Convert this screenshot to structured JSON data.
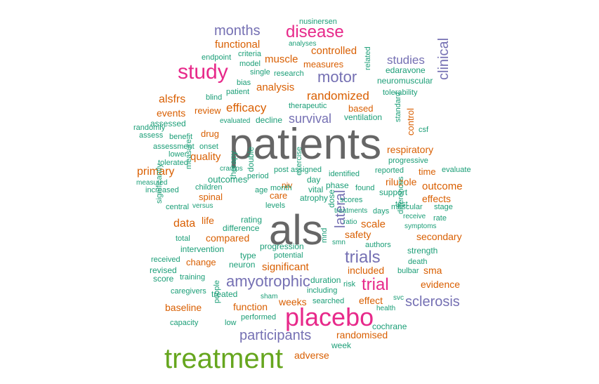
{
  "palette": {
    "gray": "#666666",
    "green": "#66a61e",
    "magenta": "#e7298a",
    "purple": "#7570b3",
    "orange": "#d95f02",
    "teal": "#1b9e77"
  },
  "words": [
    {
      "text": "patients",
      "color": "gray"
    },
    {
      "text": "als",
      "color": "gray"
    },
    {
      "text": "treatment",
      "color": "green"
    },
    {
      "text": "placebo",
      "color": "magenta"
    },
    {
      "text": "study",
      "color": "magenta"
    },
    {
      "text": "disease",
      "color": "magenta"
    },
    {
      "text": "trial",
      "color": "magenta"
    },
    {
      "text": "months",
      "color": "purple"
    },
    {
      "text": "motor",
      "color": "purple"
    },
    {
      "text": "trials",
      "color": "purple"
    },
    {
      "text": "amyotrophic",
      "color": "purple"
    },
    {
      "text": "participants",
      "color": "purple"
    },
    {
      "text": "sclerosis",
      "color": "purple"
    },
    {
      "text": "survival",
      "color": "purple"
    },
    {
      "text": "studies",
      "color": "purple"
    },
    {
      "text": "clinical",
      "color": "purple"
    },
    {
      "text": "lateral",
      "color": "purple"
    },
    {
      "text": "functional",
      "color": "orange"
    },
    {
      "text": "controlled",
      "color": "orange"
    },
    {
      "text": "muscle",
      "color": "orange"
    },
    {
      "text": "measures",
      "color": "orange"
    },
    {
      "text": "analysis",
      "color": "orange"
    },
    {
      "text": "randomized",
      "color": "orange"
    },
    {
      "text": "efficacy",
      "color": "orange"
    },
    {
      "text": "alsfrs",
      "color": "orange"
    },
    {
      "text": "events",
      "color": "orange"
    },
    {
      "text": "review",
      "color": "orange"
    },
    {
      "text": "based",
      "color": "orange"
    },
    {
      "text": "drug",
      "color": "orange"
    },
    {
      "text": "respiratory",
      "color": "orange"
    },
    {
      "text": "quality",
      "color": "orange"
    },
    {
      "text": "primary",
      "color": "orange"
    },
    {
      "text": "outcome",
      "color": "orange"
    },
    {
      "text": "effects",
      "color": "orange"
    },
    {
      "text": "riluzole",
      "color": "orange"
    },
    {
      "text": "data",
      "color": "orange"
    },
    {
      "text": "life",
      "color": "orange"
    },
    {
      "text": "spinal",
      "color": "orange"
    },
    {
      "text": "compared",
      "color": "orange"
    },
    {
      "text": "scale",
      "color": "orange"
    },
    {
      "text": "safety",
      "color": "orange"
    },
    {
      "text": "secondary",
      "color": "orange"
    },
    {
      "text": "significant",
      "color": "orange"
    },
    {
      "text": "included",
      "color": "orange"
    },
    {
      "text": "sma",
      "color": "orange"
    },
    {
      "text": "evidence",
      "color": "orange"
    },
    {
      "text": "change",
      "color": "orange"
    },
    {
      "text": "baseline",
      "color": "orange"
    },
    {
      "text": "function",
      "color": "orange"
    },
    {
      "text": "weeks",
      "color": "orange"
    },
    {
      "text": "effect",
      "color": "orange"
    },
    {
      "text": "randomised",
      "color": "orange"
    },
    {
      "text": "adverse",
      "color": "orange"
    },
    {
      "text": "time",
      "color": "orange"
    },
    {
      "text": "care",
      "color": "orange"
    },
    {
      "text": "niv",
      "color": "orange"
    },
    {
      "text": "control",
      "color": "orange"
    },
    {
      "text": "nusinersen",
      "color": "teal"
    },
    {
      "text": "analyses",
      "color": "teal"
    },
    {
      "text": "endpoint",
      "color": "teal"
    },
    {
      "text": "criteria",
      "color": "teal"
    },
    {
      "text": "model",
      "color": "teal"
    },
    {
      "text": "single",
      "color": "teal"
    },
    {
      "text": "research",
      "color": "teal"
    },
    {
      "text": "bias",
      "color": "teal"
    },
    {
      "text": "patient",
      "color": "teal"
    },
    {
      "text": "blind",
      "color": "teal"
    },
    {
      "text": "therapeutic",
      "color": "teal"
    },
    {
      "text": "evaluated",
      "color": "teal"
    },
    {
      "text": "decline",
      "color": "teal"
    },
    {
      "text": "ventilation",
      "color": "teal"
    },
    {
      "text": "edaravone",
      "color": "teal"
    },
    {
      "text": "neuromuscular",
      "color": "teal"
    },
    {
      "text": "tolerability",
      "color": "teal"
    },
    {
      "text": "related",
      "color": "teal"
    },
    {
      "text": "randomly",
      "color": "teal"
    },
    {
      "text": "assessed",
      "color": "teal"
    },
    {
      "text": "assess",
      "color": "teal"
    },
    {
      "text": "benefit",
      "color": "teal"
    },
    {
      "text": "assessment",
      "color": "teal"
    },
    {
      "text": "onset",
      "color": "teal"
    },
    {
      "text": "lower",
      "color": "teal"
    },
    {
      "text": "tolerated",
      "color": "teal"
    },
    {
      "text": "cramps",
      "color": "teal"
    },
    {
      "text": "period",
      "color": "teal"
    },
    {
      "text": "post",
      "color": "teal"
    },
    {
      "text": "assigned",
      "color": "teal"
    },
    {
      "text": "identified",
      "color": "teal"
    },
    {
      "text": "reported",
      "color": "teal"
    },
    {
      "text": "evaluate",
      "color": "teal"
    },
    {
      "text": "standard",
      "color": "teal"
    },
    {
      "text": "csf",
      "color": "teal"
    },
    {
      "text": "progressive",
      "color": "teal"
    },
    {
      "text": "outcomes",
      "color": "teal"
    },
    {
      "text": "measured",
      "color": "teal"
    },
    {
      "text": "children",
      "color": "teal"
    },
    {
      "text": "increased",
      "color": "teal"
    },
    {
      "text": "measure",
      "color": "teal"
    },
    {
      "text": "double",
      "color": "teal"
    },
    {
      "text": "age",
      "color": "teal"
    },
    {
      "text": "month",
      "color": "teal"
    },
    {
      "text": "day",
      "color": "teal"
    },
    {
      "text": "vital",
      "color": "teal"
    },
    {
      "text": "phase",
      "color": "teal"
    },
    {
      "text": "found",
      "color": "teal"
    },
    {
      "text": "support",
      "color": "teal"
    },
    {
      "text": "atrophy",
      "color": "teal"
    },
    {
      "text": "scores",
      "color": "teal"
    },
    {
      "text": "test",
      "color": "teal"
    },
    {
      "text": "muscular",
      "color": "teal"
    },
    {
      "text": "stage",
      "color": "teal"
    },
    {
      "text": "central",
      "color": "teal"
    },
    {
      "text": "versus",
      "color": "teal"
    },
    {
      "text": "therapy",
      "color": "teal"
    },
    {
      "text": "levels",
      "color": "teal"
    },
    {
      "text": "exercise",
      "color": "teal"
    },
    {
      "text": "treatments",
      "color": "teal"
    },
    {
      "text": "days",
      "color": "teal"
    },
    {
      "text": "receive",
      "color": "teal"
    },
    {
      "text": "rate",
      "color": "teal"
    },
    {
      "text": "significantly",
      "color": "teal"
    },
    {
      "text": "rating",
      "color": "teal"
    },
    {
      "text": "dose",
      "color": "teal"
    },
    {
      "text": "ratio",
      "color": "teal"
    },
    {
      "text": "symptoms",
      "color": "teal"
    },
    {
      "text": "total",
      "color": "teal"
    },
    {
      "text": "difference",
      "color": "teal"
    },
    {
      "text": "differences",
      "color": "teal"
    },
    {
      "text": "smn",
      "color": "teal"
    },
    {
      "text": "authors",
      "color": "teal"
    },
    {
      "text": "intervention",
      "color": "teal"
    },
    {
      "text": "progression",
      "color": "teal"
    },
    {
      "text": "strength",
      "color": "teal"
    },
    {
      "text": "received",
      "color": "teal"
    },
    {
      "text": "type",
      "color": "teal"
    },
    {
      "text": "mnd",
      "color": "teal"
    },
    {
      "text": "death",
      "color": "teal"
    },
    {
      "text": "neuron",
      "color": "teal"
    },
    {
      "text": "potential",
      "color": "teal"
    },
    {
      "text": "revised",
      "color": "teal"
    },
    {
      "text": "bulbar",
      "color": "teal"
    },
    {
      "text": "score",
      "color": "teal"
    },
    {
      "text": "training",
      "color": "teal"
    },
    {
      "text": "duration",
      "color": "teal"
    },
    {
      "text": "risk",
      "color": "teal"
    },
    {
      "text": "caregivers",
      "color": "teal"
    },
    {
      "text": "treated",
      "color": "teal"
    },
    {
      "text": "including",
      "color": "teal"
    },
    {
      "text": "sham",
      "color": "teal"
    },
    {
      "text": "searched",
      "color": "teal"
    },
    {
      "text": "svc",
      "color": "teal"
    },
    {
      "text": "people",
      "color": "teal"
    },
    {
      "text": "health",
      "color": "teal"
    },
    {
      "text": "performed",
      "color": "teal"
    },
    {
      "text": "capacity",
      "color": "teal"
    },
    {
      "text": "low",
      "color": "teal"
    },
    {
      "text": "cochrane",
      "color": "teal"
    },
    {
      "text": "week",
      "color": "teal"
    }
  ]
}
